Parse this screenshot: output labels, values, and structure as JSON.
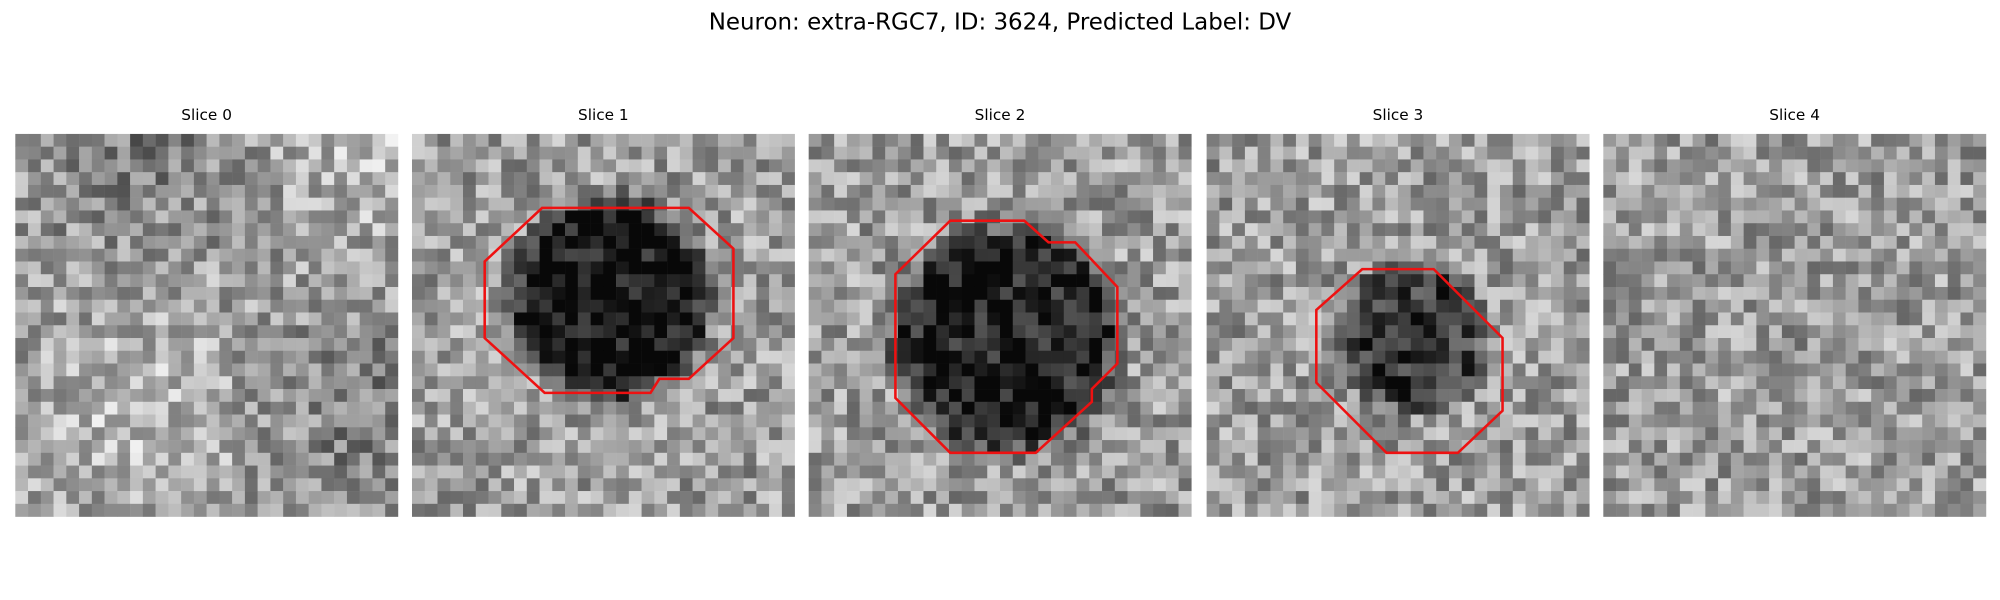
{
  "title": "Neuron: extra-RGC7, ID: 3624, Predicted Label: DV",
  "panels": [
    {
      "title": "Slice 0"
    },
    {
      "title": "Slice 1"
    },
    {
      "title": "Slice 2"
    },
    {
      "title": "Slice 3"
    },
    {
      "title": "Slice 4"
    }
  ]
}
